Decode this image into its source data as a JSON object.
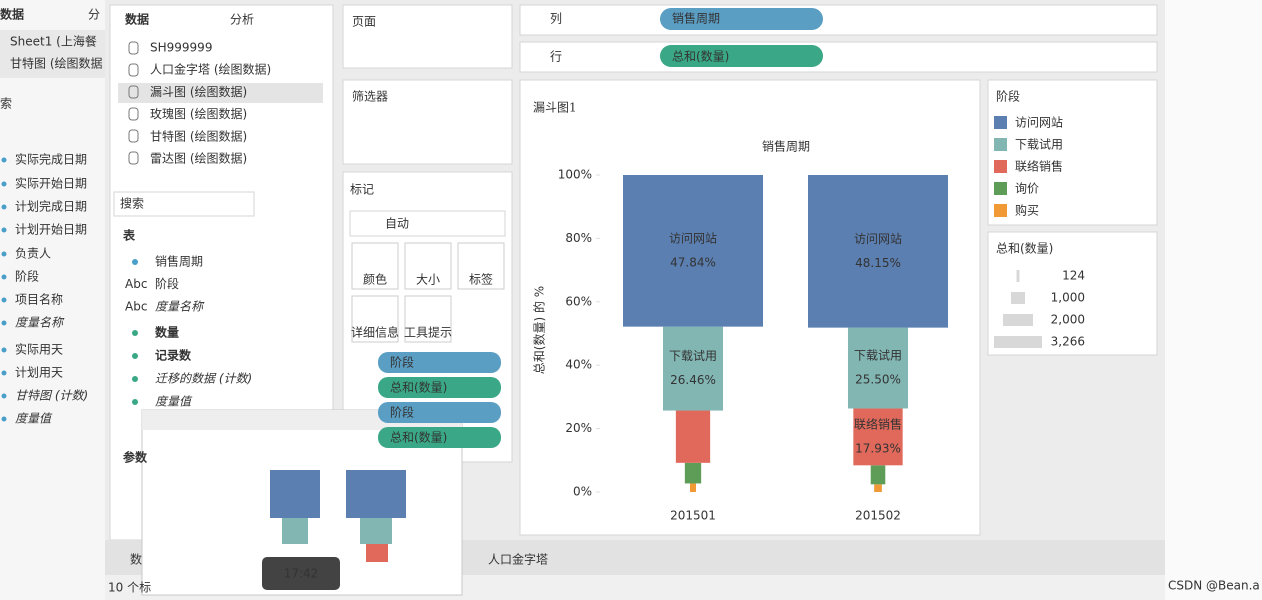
{
  "background_sheet": {
    "tabs": [
      "数据",
      "分"
    ],
    "sources": [
      "Sheet1 (上海餐",
      "甘特图 (绘图数据"
    ],
    "search": "索",
    "fields": [
      "实际完成日期",
      "实际开始日期",
      "计划完成日期",
      "计划开始日期",
      "负责人",
      "阶段",
      "项目名称",
      "度量名称",
      "实际用天",
      "计划用天",
      "甘特图 (计数)",
      "度量值"
    ]
  },
  "data_pane": {
    "tabs": [
      "数据",
      "分析"
    ],
    "sources": [
      "SH999999",
      "人口金字塔 (绘图数据)",
      "漏斗图 (绘图数据)",
      "玫瑰图 (绘图数据)",
      "甘特图 (绘图数据)",
      "雷达图 (绘图数据)"
    ],
    "search": "搜索",
    "table_header": "表",
    "dimensions": [
      "销售周期",
      "阶段",
      "度量名称"
    ],
    "dimension_types": [
      "",
      "Abc",
      "Abc"
    ],
    "measures": [
      "数量",
      "记录数",
      "迁移的数据 (计数)",
      "度量值"
    ],
    "params": "参数"
  },
  "cards": {
    "pages": "页面",
    "filters": "筛选器",
    "marks": "标记",
    "mark_type": "自动",
    "buttons": [
      "颜色",
      "大小",
      "标签",
      "详细信息",
      "工具提示"
    ],
    "pills": [
      "阶段",
      "总和(数量)",
      "阶段",
      "总和(数量)"
    ]
  },
  "shelves": {
    "columns_label": "列",
    "columns_pill": "销售周期",
    "rows_label": "行",
    "rows_pill": "总和(数量)"
  },
  "chart_data": {
    "type": "funnel",
    "title": "漏斗图1",
    "x_axis_title": "销售周期",
    "y_axis_title": "总和(数量) 的 %",
    "categories": [
      "201501",
      "201502"
    ],
    "ylim": [
      0,
      100
    ],
    "yticks": [
      {
        "value": 0,
        "label": "0%"
      },
      {
        "value": 20,
        "label": "20%"
      },
      {
        "value": 40,
        "label": "40%"
      },
      {
        "value": 60,
        "label": "60%"
      },
      {
        "value": 80,
        "label": "80%"
      },
      {
        "value": 100,
        "label": "100%"
      }
    ],
    "legend_title": "阶段",
    "series": [
      {
        "name": "访问网站",
        "color": "#5b7fb0",
        "values": [
          47.84,
          48.15
        ],
        "value_labels": [
          "47.84%",
          "48.15%"
        ],
        "sizes": [
          3266,
          3266
        ]
      },
      {
        "name": "下载试用",
        "color": "#82b6b3",
        "values": [
          26.46,
          25.5
        ],
        "value_labels": [
          "26.46%",
          "25.50%"
        ],
        "sizes": [
          1400,
          1400
        ]
      },
      {
        "name": "联络销售",
        "color": "#e0695b",
        "values": [
          16.5,
          17.93
        ],
        "value_labels": [
          null,
          "17.93%"
        ],
        "sizes": [
          800,
          1150
        ]
      },
      {
        "name": "询价",
        "color": "#5d9d57",
        "values": [
          6.5,
          6
        ],
        "sizes": [
          380,
          340
        ]
      },
      {
        "name": "购买",
        "color": "#f19a35",
        "values": [
          2.7,
          2.42
        ],
        "sizes": [
          140,
          180
        ]
      }
    ]
  },
  "size_legend": {
    "title": "总和(数量)",
    "items": [
      "124",
      "1,000",
      "2,000",
      "3,266"
    ]
  },
  "bottom_bar": {
    "tabs": [
      "数",
      "人口金字塔"
    ],
    "status": "10 个标"
  },
  "overlay": {
    "time": "17:42"
  },
  "watermark": "CSDN @Bean.a"
}
